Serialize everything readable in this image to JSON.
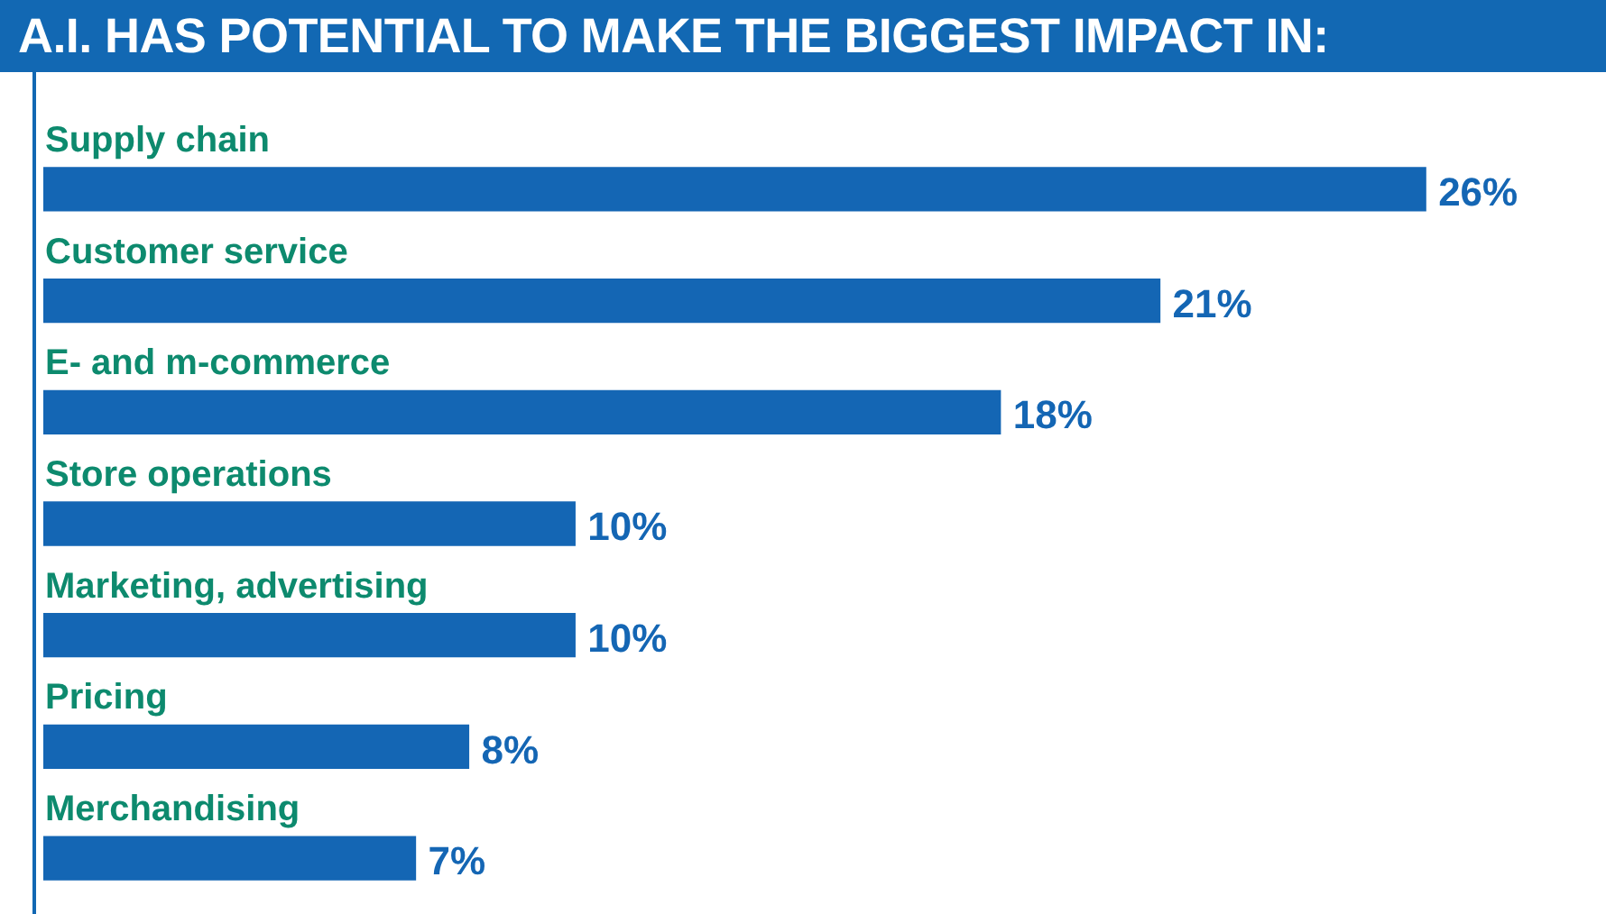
{
  "chart_data": {
    "type": "bar",
    "orientation": "horizontal",
    "title": "A.I. HAS POTENTIAL TO MAKE THE BIGGEST IMPACT IN:",
    "categories": [
      "Supply chain",
      "Customer service",
      "E- and m-commerce",
      "Store operations",
      "Marketing, advertising",
      "Pricing",
      "Merchandising"
    ],
    "values": [
      26,
      21,
      18,
      10,
      10,
      8,
      7
    ],
    "value_labels": [
      "26%",
      "21%",
      "18%",
      "10%",
      "10%",
      "8%",
      "7%"
    ],
    "color": "#1466b4"
  }
}
